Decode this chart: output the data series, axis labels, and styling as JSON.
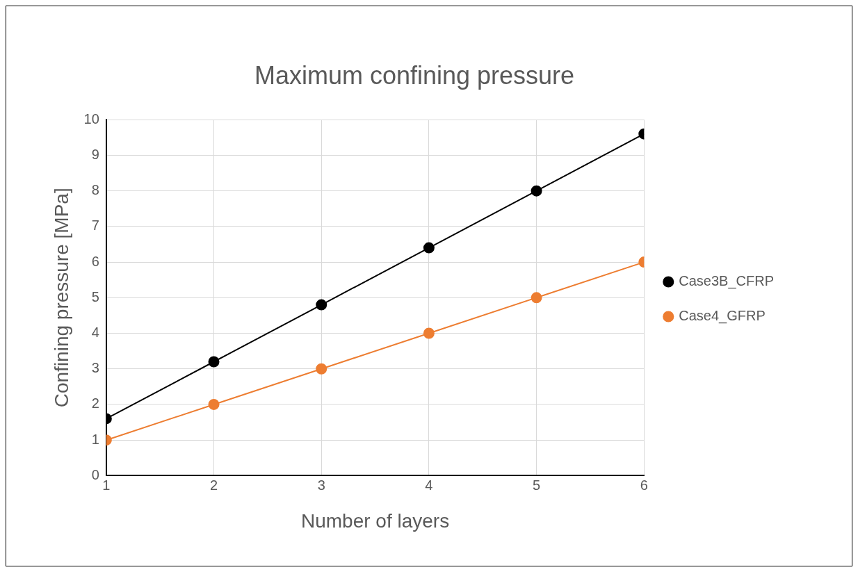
{
  "chart_data": {
    "type": "line",
    "title": "Maximum confining pressure",
    "xlabel": "Number of layers",
    "ylabel": "Confining pressure [MPa]",
    "x": [
      1,
      2,
      3,
      4,
      5,
      6
    ],
    "series": [
      {
        "name": "Case3B_CFRP",
        "color": "#000000",
        "values": [
          1.6,
          3.2,
          4.8,
          6.4,
          8.0,
          9.6
        ]
      },
      {
        "name": "Case4_GFRP",
        "color": "#ed7d31",
        "values": [
          1,
          2,
          3,
          4,
          5,
          6
        ]
      }
    ],
    "xlim": [
      1,
      6
    ],
    "xticks": [
      1,
      2,
      3,
      4,
      5,
      6
    ],
    "ylim": [
      0,
      10
    ],
    "yticks": [
      0,
      1,
      2,
      3,
      4,
      5,
      6,
      7,
      8,
      9,
      10
    ],
    "grid": true,
    "legend": "right",
    "marker": "circle",
    "line_style": "solid"
  }
}
